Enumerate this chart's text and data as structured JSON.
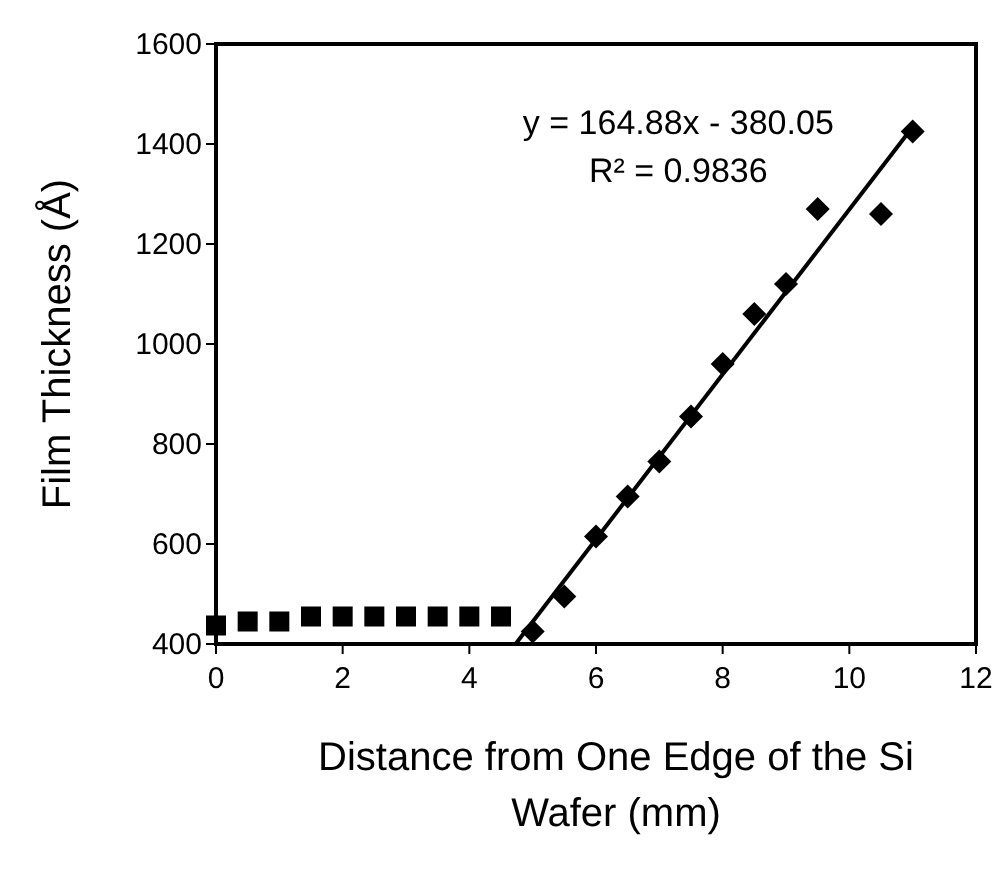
{
  "chart_data": {
    "type": "scatter",
    "xlabel": "Distance from One Edge of the Si Wafer (mm)",
    "ylabel": "Film Thickness (Å)",
    "xlim": [
      0,
      12
    ],
    "ylim": [
      400,
      1600
    ],
    "xticks": [
      0,
      2,
      4,
      6,
      8,
      10,
      12
    ],
    "yticks": [
      400,
      600,
      800,
      1000,
      1200,
      1400,
      1600
    ],
    "grid": false,
    "annotations": [
      "y = 164.88x - 380.05",
      "R² = 0.9836"
    ],
    "series": [
      {
        "marker": "square",
        "color": "#000000",
        "x": [
          0,
          0.5,
          1,
          1.5,
          2,
          2.5,
          3,
          3.5,
          4,
          4.5
        ],
        "values": [
          437,
          445,
          445,
          455,
          455,
          455,
          455,
          455,
          455,
          455
        ]
      },
      {
        "marker": "diamond",
        "color": "#000000",
        "x": [
          5,
          5.5,
          6,
          6.5,
          7,
          7.5,
          8,
          8.5,
          9,
          9.5,
          10.5,
          11
        ],
        "values": [
          425,
          495,
          615,
          695,
          765,
          855,
          960,
          1060,
          1120,
          1270,
          1260,
          1425
        ]
      },
      {
        "type": "line",
        "line_style": "solid",
        "color": "#000000",
        "x": [
          4.73,
          11
        ],
        "values": [
          400,
          1434
        ]
      }
    ]
  }
}
